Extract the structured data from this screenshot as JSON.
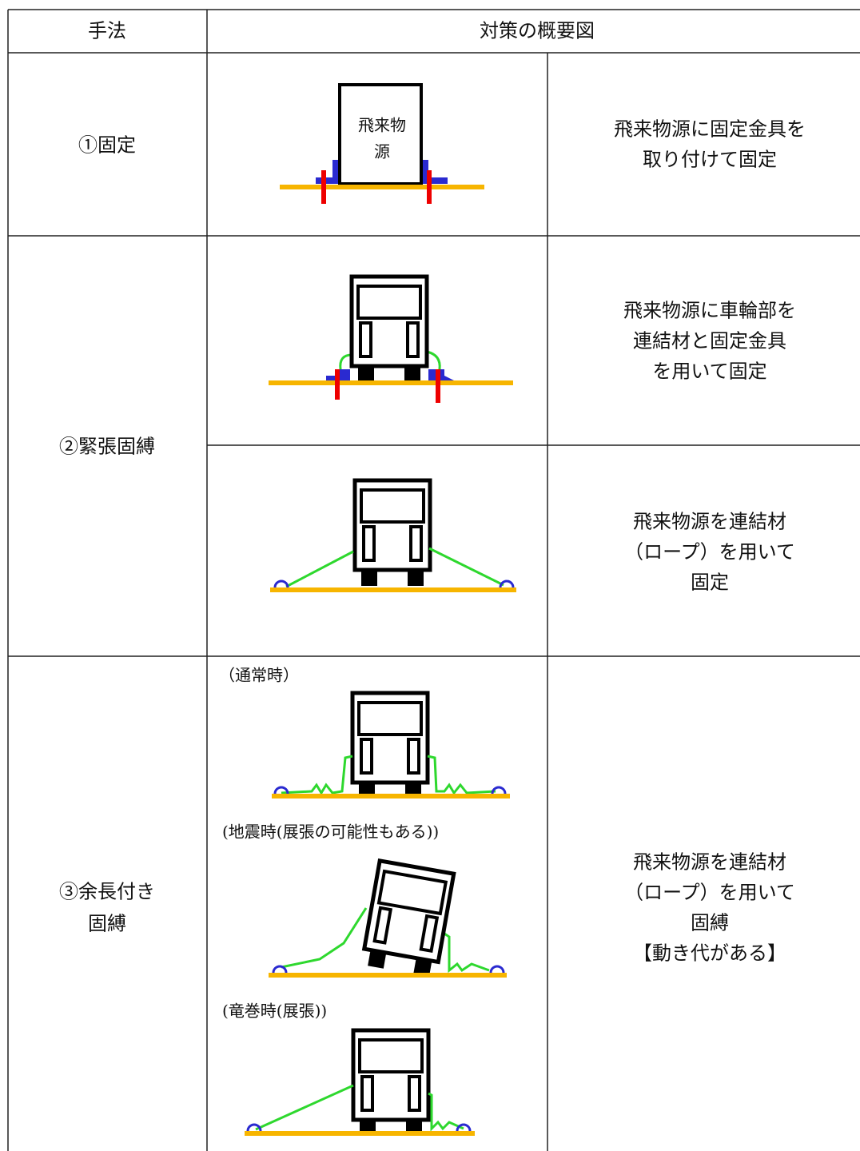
{
  "header": {
    "method": "手法",
    "overview": "対策の概要図"
  },
  "rows": [
    {
      "method": [
        "①固定"
      ],
      "figure_text": [
        "飛来物",
        "源"
      ],
      "description": [
        "飛来物源に固定金具を",
        "取り付けて固定"
      ]
    },
    {
      "method": [
        "②緊張固縛"
      ],
      "subrows": [
        {
          "description": [
            "飛来物源に車輪部を",
            "連結材と固定金具",
            "を用いて固定"
          ]
        },
        {
          "description": [
            "飛来物源を連結材",
            "（ロープ）を用いて",
            "固定"
          ]
        }
      ]
    },
    {
      "method": [
        "③余長付き",
        "固縛"
      ],
      "captions": [
        "（通常時）",
        "(地震時(展張の可能性もある))",
        "(竜巻時(展張))"
      ],
      "description": [
        "飛来物源を連結材",
        "（ロープ）を用いて",
        "固縛",
        "【動き代がある】"
      ]
    }
  ]
}
